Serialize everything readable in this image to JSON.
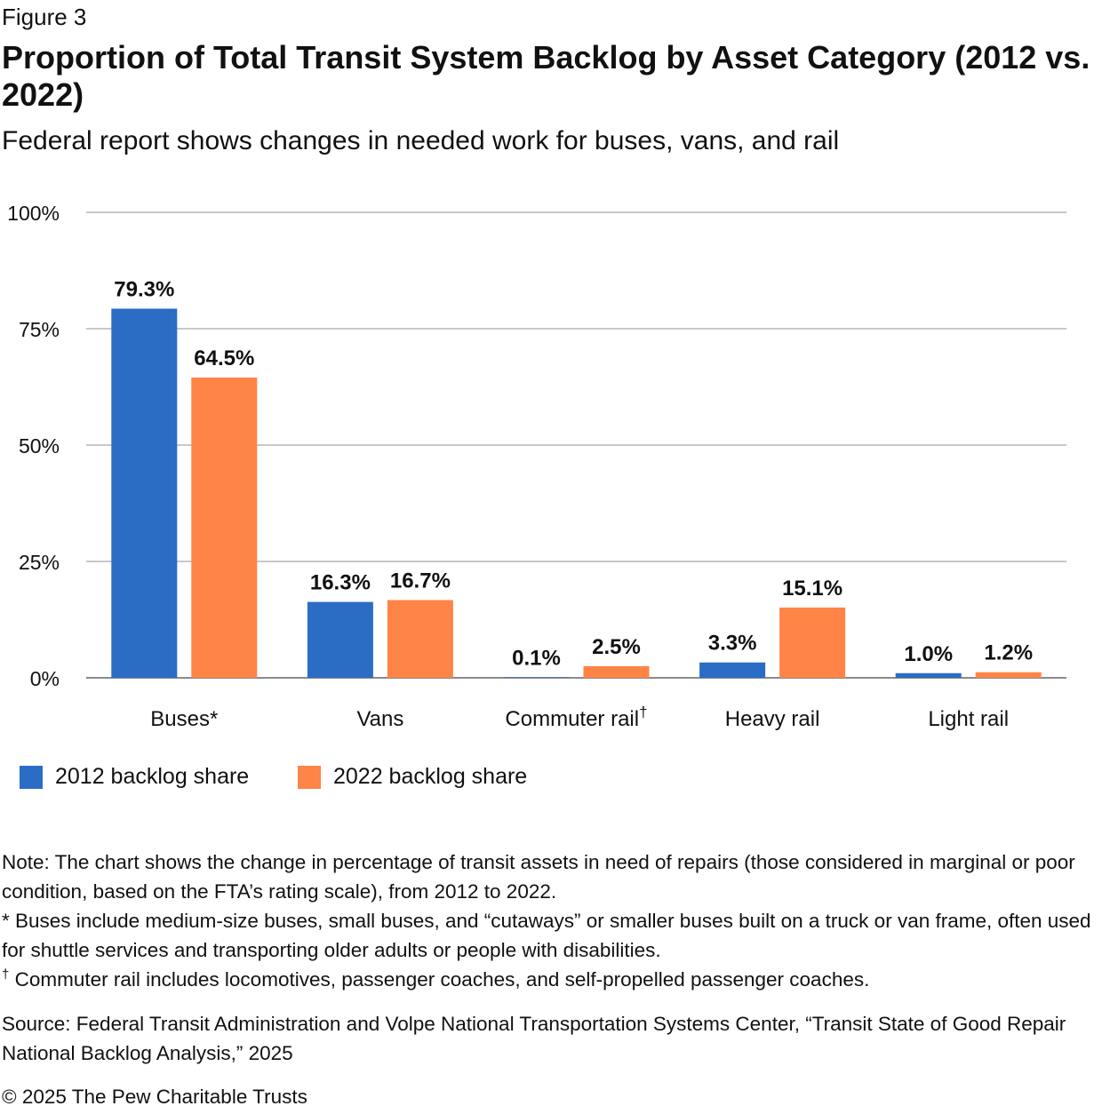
{
  "figure_label": "Figure 3",
  "title": "Proportion of Total Transit System Backlog by Asset Category (2012 vs. 2022)",
  "subtitle": "Federal report shows changes in needed work for buses, vans, and rail",
  "colors": {
    "series_2012": "#2b6cc4",
    "series_2022": "#ff8447",
    "grid": "#b5b5b5",
    "axis": "#8a8a8a"
  },
  "chart_data": {
    "type": "bar",
    "title": "Proportion of Total Transit System Backlog by Asset Category (2012 vs. 2022)",
    "categories": [
      "Buses",
      "Vans",
      "Commuter rail",
      "Heavy rail",
      "Light rail"
    ],
    "category_marks": [
      "*",
      "",
      "†",
      "",
      ""
    ],
    "series": [
      {
        "name": "2012 backlog share",
        "values": [
          79.3,
          16.3,
          0.1,
          3.3,
          1.0
        ],
        "labels": [
          "79.3%",
          "16.3%",
          "0.1%",
          "3.3%",
          "1.0%"
        ]
      },
      {
        "name": "2022 backlog share",
        "values": [
          64.5,
          16.7,
          2.5,
          15.1,
          1.2
        ],
        "labels": [
          "64.5%",
          "16.7%",
          "2.5%",
          "15.1%",
          "1.2%"
        ]
      }
    ],
    "yticks": [
      0,
      25,
      50,
      75,
      100
    ],
    "ytick_labels": [
      "0%",
      "25%",
      "50%",
      "75%",
      "100%"
    ],
    "ylim": [
      0,
      100
    ],
    "grid": true,
    "legend_position": "bottom-left"
  },
  "notes": {
    "note": "Note: The chart shows the change in percentage of transit assets in need of repairs (those considered in marginal or poor condition, based on the FTA’s rating scale), from 2012 to 2022.",
    "buses_mark": "*",
    "buses_note": " Buses include medium-size buses, small buses, and “cutaways” or smaller buses built on a truck or van frame, often used for shuttle services and transporting older adults or people with disabilities.",
    "rail_mark": "†",
    "rail_note": " Commuter rail includes locomotives, passenger coaches, and self-propelled passenger coaches."
  },
  "source": "Source: Federal Transit Administration and Volpe National Transportation Systems Center, “Transit State of Good Repair National Backlog Analysis,” 2025",
  "copyright": "© 2025 The Pew Charitable Trusts"
}
